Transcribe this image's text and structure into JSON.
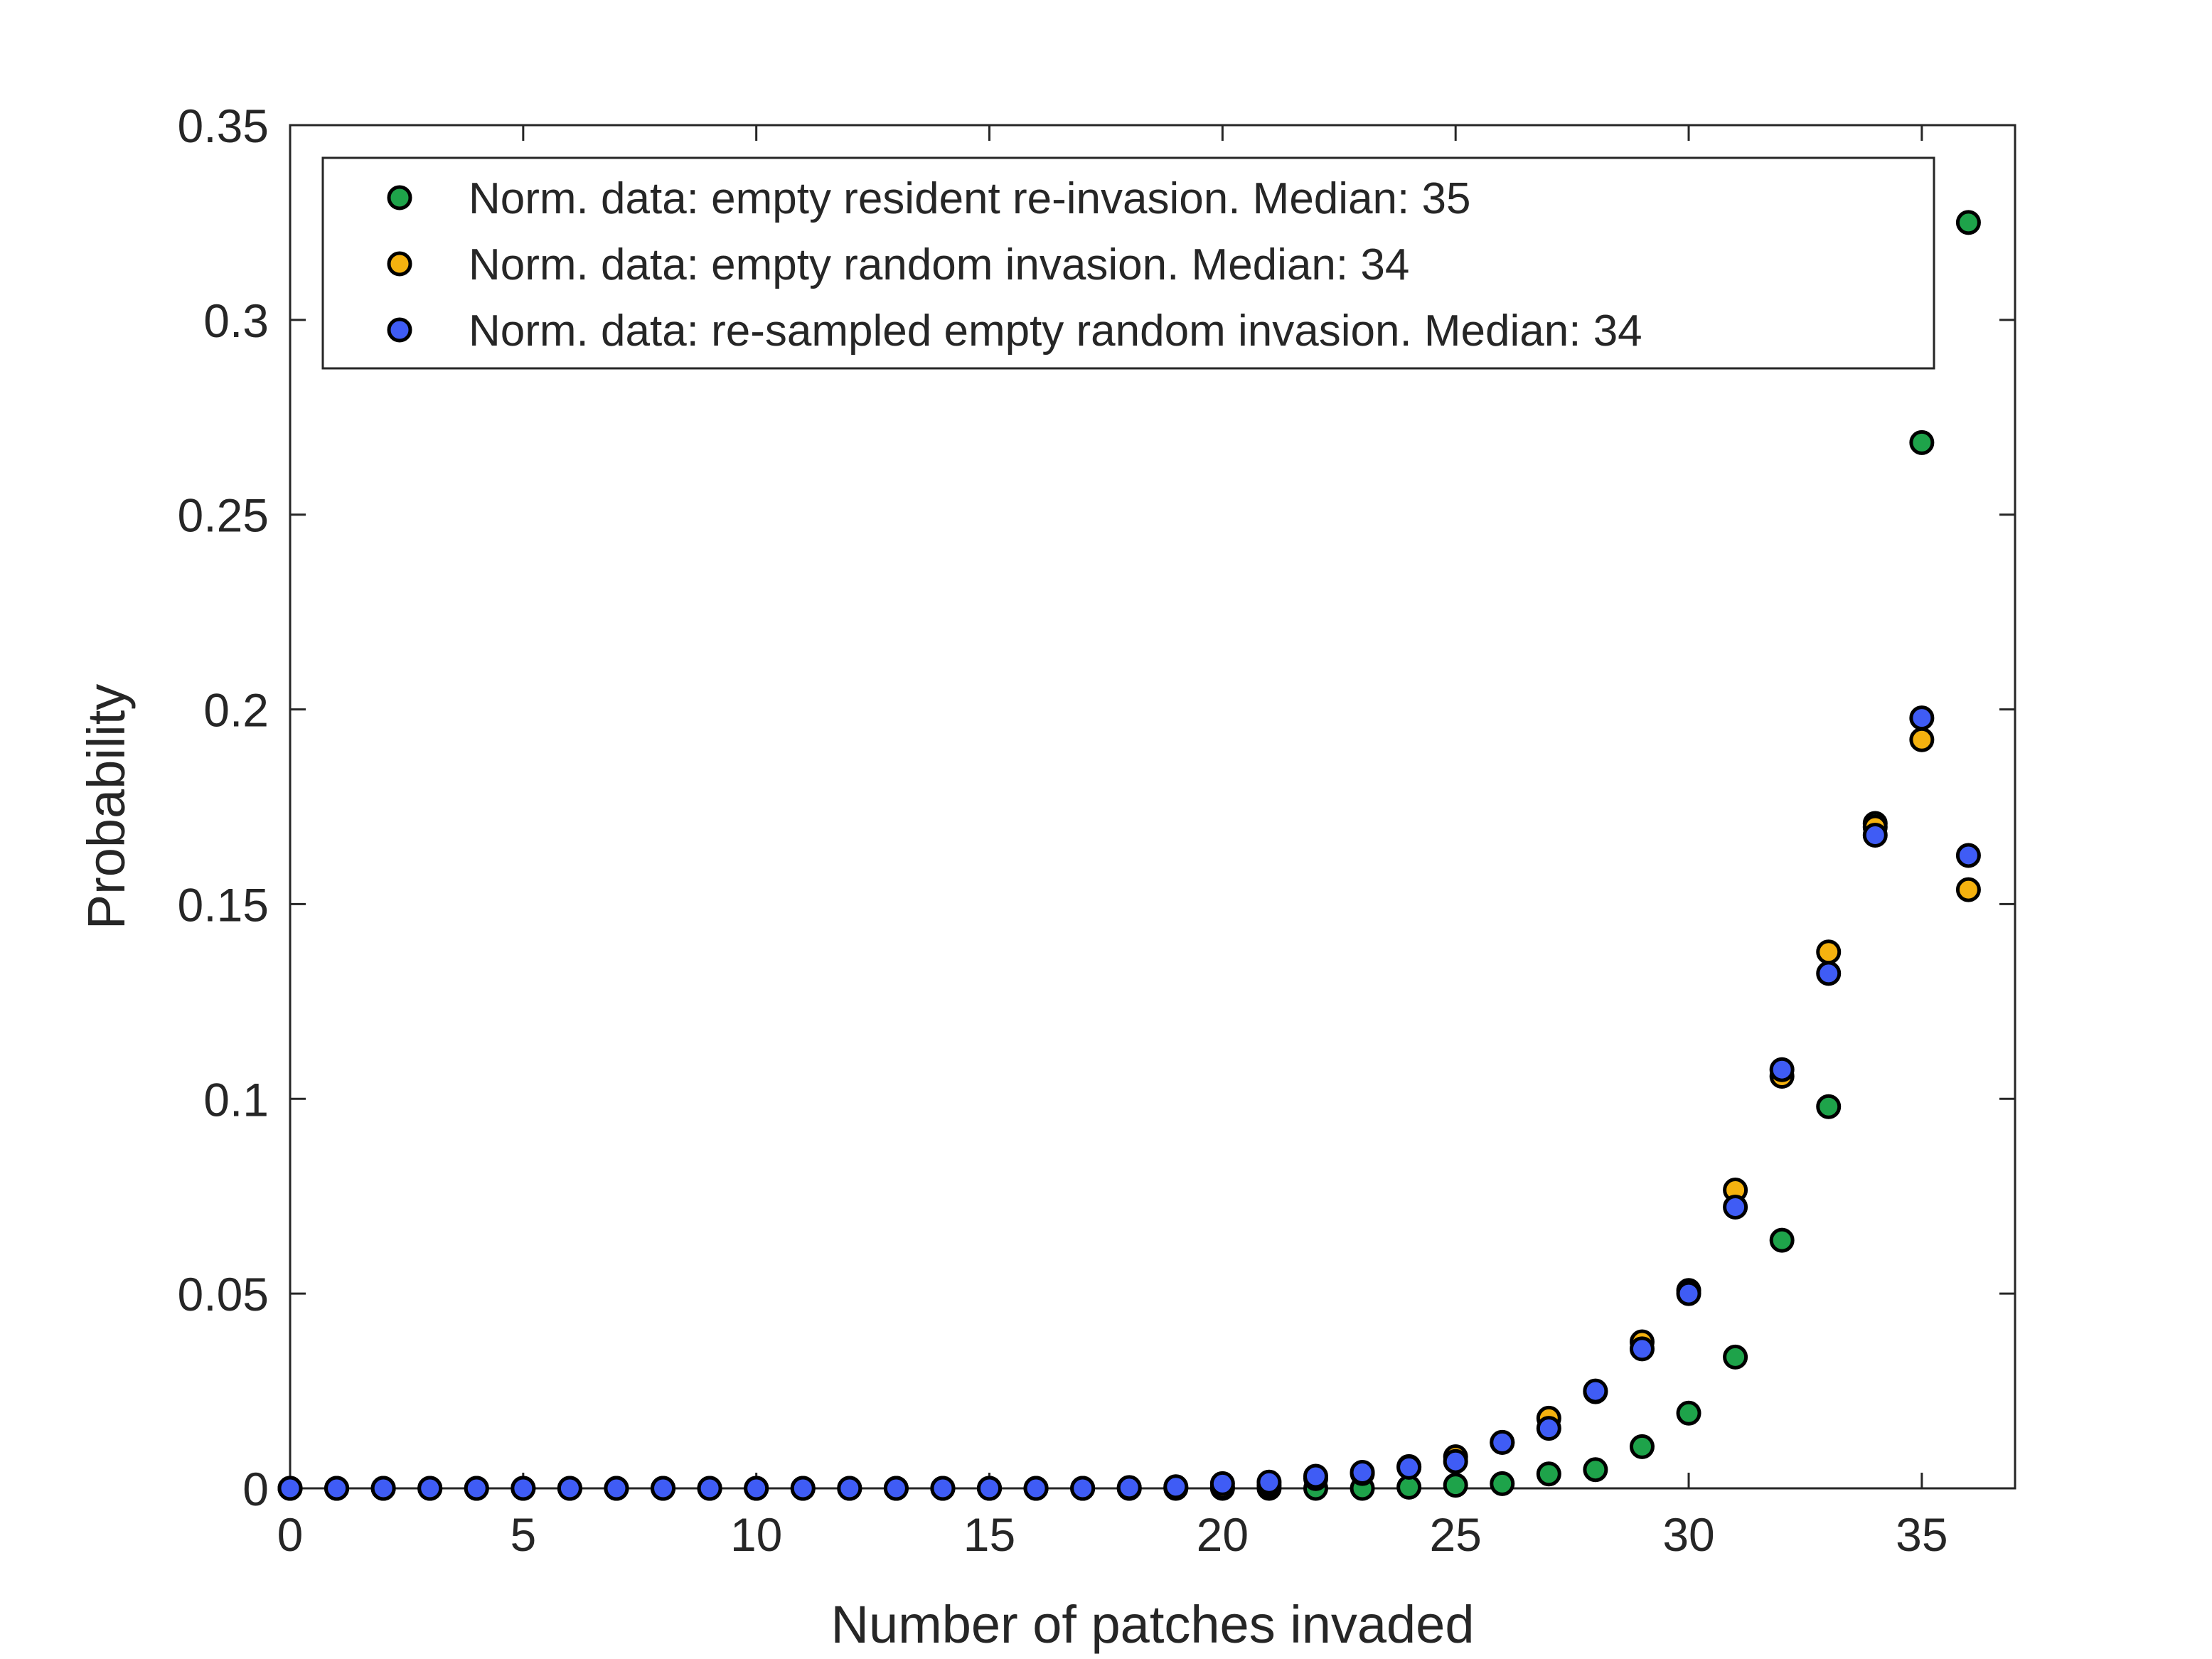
{
  "chart_data": {
    "type": "scatter",
    "xlabel": "Number of patches invaded",
    "ylabel": "Probability",
    "xlim": [
      0,
      37
    ],
    "ylim": [
      0,
      0.35
    ],
    "xticks": [
      0,
      5,
      10,
      15,
      20,
      25,
      30,
      35
    ],
    "yticks": [
      0,
      0.05,
      0.1,
      0.15,
      0.2,
      0.25,
      0.3,
      0.35
    ],
    "xtick_labels": [
      "0",
      "5",
      "10",
      "15",
      "20",
      "25",
      "30",
      "35"
    ],
    "ytick_labels": [
      "0",
      "0.05",
      "0.1",
      "0.15",
      "0.2",
      "0.25",
      "0.3",
      "0.35"
    ],
    "grid": false,
    "legend_position": "top-left",
    "series": [
      {
        "name": "Norm. data: empty resident re-invasion. Median: 35",
        "color": "#1ea34a",
        "x": [
          0,
          1,
          2,
          3,
          4,
          5,
          6,
          7,
          8,
          9,
          10,
          11,
          12,
          13,
          14,
          15,
          16,
          17,
          18,
          19,
          20,
          21,
          22,
          23,
          24,
          25,
          26,
          27,
          28,
          29,
          30,
          31,
          32,
          33,
          34,
          35,
          36
        ],
        "y": [
          0,
          0,
          0,
          0,
          0,
          0,
          0,
          0,
          0,
          0,
          0,
          0,
          0,
          0,
          0,
          0,
          0,
          0,
          0,
          0,
          0,
          0,
          0,
          0,
          0.0003,
          0.0008,
          0.0012,
          0.0037,
          0.0048,
          0.0107,
          0.0193,
          0.0337,
          0.0637,
          0.098,
          0.1707,
          0.2685,
          0.325
        ]
      },
      {
        "name": "Norm. data: empty random invasion. Median: 34",
        "color": "#f5b20f",
        "x": [
          0,
          1,
          2,
          3,
          4,
          5,
          6,
          7,
          8,
          9,
          10,
          11,
          12,
          13,
          14,
          15,
          16,
          17,
          18,
          19,
          20,
          21,
          22,
          23,
          24,
          25,
          26,
          27,
          28,
          29,
          30,
          31,
          32,
          33,
          34,
          35,
          36
        ],
        "y": [
          0,
          0,
          0,
          0,
          0,
          0,
          0,
          0,
          0,
          0,
          0,
          0,
          0,
          0,
          0,
          0,
          0,
          0,
          0,
          0.0002,
          0.0003,
          0.0008,
          0.0025,
          0.0038,
          0.0056,
          0.0081,
          0.0118,
          0.018,
          0.0248,
          0.0376,
          0.0508,
          0.0766,
          0.1058,
          0.1377,
          0.1698,
          0.1922,
          0.1537
        ]
      },
      {
        "name": "Norm. data: re-sampled empty random invasion. Median: 34",
        "color": "#3f5cf5",
        "x": [
          0,
          1,
          2,
          3,
          4,
          5,
          6,
          7,
          8,
          9,
          10,
          11,
          12,
          13,
          14,
          15,
          16,
          17,
          18,
          19,
          20,
          21,
          22,
          23,
          24,
          25,
          26,
          27,
          28,
          29,
          30,
          31,
          32,
          33,
          34,
          35,
          36
        ],
        "y": [
          0,
          0,
          0,
          0,
          0,
          0,
          0,
          0,
          0,
          0,
          0,
          0,
          0,
          0,
          0,
          0,
          0,
          0,
          0.0002,
          0.0004,
          0.0012,
          0.0016,
          0.0031,
          0.0041,
          0.0054,
          0.0069,
          0.0118,
          0.0154,
          0.025,
          0.0358,
          0.05,
          0.0722,
          0.1075,
          0.1322,
          0.1677,
          0.1978,
          0.1625
        ]
      }
    ]
  }
}
